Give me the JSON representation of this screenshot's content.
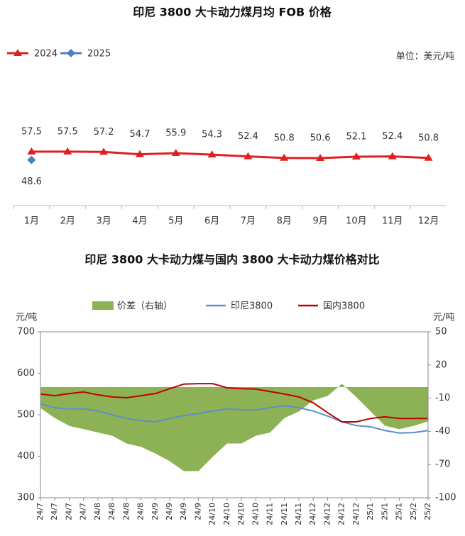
{
  "chart_data": [
    {
      "type": "line",
      "title": "印尼 3800 大卡动力煤月均 FOB 价格",
      "unit": "单位：美元/吨",
      "categories": [
        "1月",
        "2月",
        "3月",
        "4月",
        "5月",
        "6月",
        "7月",
        "8月",
        "9月",
        "10月",
        "11月",
        "12月"
      ],
      "ylim": [
        0,
        105
      ],
      "series": [
        {
          "name": "2024",
          "color": "#e02020",
          "marker": "triangle",
          "values": [
            57.5,
            57.5,
            57.2,
            54.7,
            55.9,
            54.3,
            52.4,
            50.8,
            50.6,
            52.1,
            52.4,
            50.8
          ]
        },
        {
          "name": "2025",
          "color": "#4a7fc1",
          "marker": "diamond",
          "values": [
            48.6,
            null,
            null,
            null,
            null,
            null,
            null,
            null,
            null,
            null,
            null,
            null
          ]
        }
      ]
    },
    {
      "type": "line",
      "title": "印尼 3800 大卡动力煤与国内 3800 大卡动力煤价格对比",
      "ylabel": "元/吨",
      "y2label": "元/吨",
      "categories": [
        "24/7",
        "24/7",
        "24/7",
        "24/7",
        "24/8",
        "24/8",
        "24/8",
        "24/8",
        "24/9",
        "24/9",
        "24/9",
        "24/9",
        "24/10",
        "24/10",
        "24/10",
        "24/10",
        "24/11",
        "24/11",
        "24/11",
        "24/12",
        "24/12",
        "24/12",
        "24/12",
        "25/1",
        "25/1",
        "25/1",
        "25/2",
        "25/2"
      ],
      "ylim": [
        300,
        700
      ],
      "yticks": [
        300,
        400,
        500,
        600,
        700
      ],
      "y2lim": [
        -100,
        50
      ],
      "y2ticks": [
        -100,
        -70,
        -40,
        -10,
        20,
        50
      ],
      "series": [
        {
          "name": "价差（右轴）",
          "type": "area",
          "axis": "y2",
          "color": "#8db255",
          "values": [
            -19,
            -28,
            -35,
            -38,
            -41,
            -44,
            -51,
            -54,
            -60,
            -67,
            -76,
            -76,
            -63,
            -51,
            -51,
            -44,
            -41,
            -28,
            -22,
            -12,
            -8,
            3,
            -9,
            -22,
            -35,
            -38,
            -35,
            -31
          ]
        },
        {
          "name": "印尼3800",
          "color": "#5b8fc7",
          "values": [
            526,
            517,
            514,
            514,
            509,
            500,
            491,
            486,
            483,
            491,
            498,
            503,
            509,
            514,
            512,
            512,
            517,
            522,
            517,
            509,
            497,
            483,
            474,
            471,
            462,
            456,
            457,
            462
          ]
        },
        {
          "name": "国内3800",
          "color": "#c00000",
          "values": [
            550,
            546,
            551,
            555,
            548,
            543,
            541,
            546,
            551,
            563,
            574,
            575,
            575,
            565,
            563,
            562,
            556,
            550,
            543,
            529,
            505,
            483,
            483,
            491,
            495,
            491,
            491,
            491
          ]
        }
      ]
    }
  ]
}
